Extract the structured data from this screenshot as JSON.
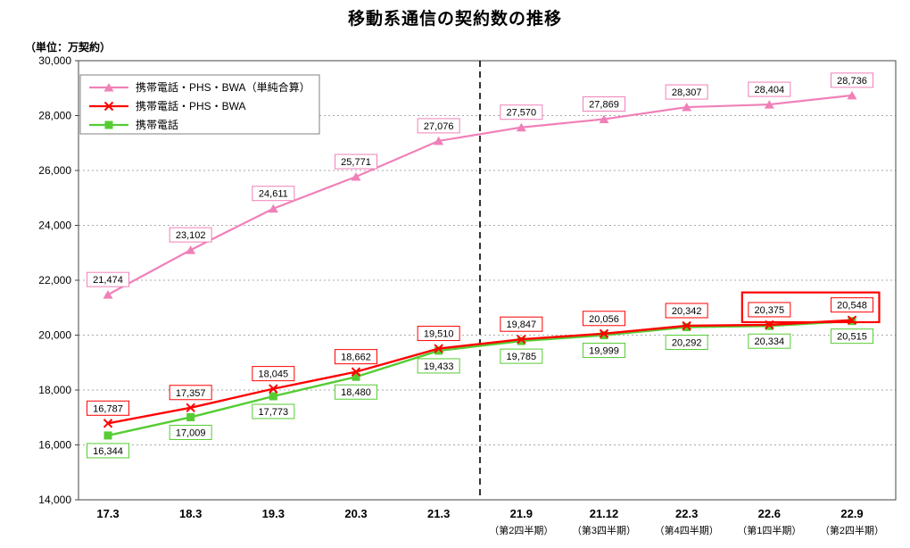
{
  "title": "移動系通信の契約数の推移",
  "unit_label": "（単位：万契約）",
  "chart_data": {
    "type": "line",
    "categories": [
      "17.3",
      "18.3",
      "19.3",
      "20.3",
      "21.3",
      "21.9",
      "21.12",
      "22.3",
      "22.6",
      "22.9"
    ],
    "category_sublabels": [
      "",
      "",
      "",
      "",
      "",
      "（第2四半期）",
      "（第3四半期）",
      "（第4四半期）",
      "（第1四半期）",
      "（第2四半期）"
    ],
    "ylim": [
      14000,
      30000
    ],
    "ytick_step": 2000,
    "ytick_labels": [
      "14,000",
      "16,000",
      "18,000",
      "20,000",
      "22,000",
      "24,000",
      "26,000",
      "28,000",
      "30,000"
    ],
    "grid": true,
    "separator_after_index": 4,
    "legend_position": "top-left",
    "series": [
      {
        "name": "携帯電話・PHS・BWA（単純合算）",
        "color": "#f080b8",
        "marker": "triangle",
        "label_position": "above",
        "values": [
          21474,
          23102,
          24611,
          25771,
          27076,
          27570,
          27869,
          28307,
          28404,
          28736
        ],
        "value_labels": [
          "21,474",
          "23,102",
          "24,611",
          "25,771",
          "27,076",
          "27,570",
          "27,869",
          "28,307",
          "28,404",
          "28,736"
        ]
      },
      {
        "name": "携帯電話・PHS・BWA",
        "color": "#ff0000",
        "marker": "x",
        "label_position": "above",
        "values": [
          16787,
          17357,
          18045,
          18662,
          19510,
          19847,
          20056,
          20342,
          20375,
          20548
        ],
        "value_labels": [
          "16,787",
          "17,357",
          "18,045",
          "18,662",
          "19,510",
          "19,847",
          "20,056",
          "20,342",
          "20,375",
          "20,548"
        ]
      },
      {
        "name": "携帯電話",
        "color": "#55cc33",
        "marker": "square",
        "label_position": "below",
        "values": [
          16344,
          17009,
          17773,
          18480,
          19433,
          19785,
          19999,
          20292,
          20334,
          20515
        ],
        "value_labels": [
          "16,344",
          "17,009",
          "17,773",
          "18,480",
          "19,433",
          "19,785",
          "19,999",
          "20,292",
          "20,334",
          "20,515"
        ]
      }
    ],
    "highlight": {
      "series_index": 1,
      "point_indices": [
        8,
        9
      ],
      "color": "#ff0000"
    }
  }
}
